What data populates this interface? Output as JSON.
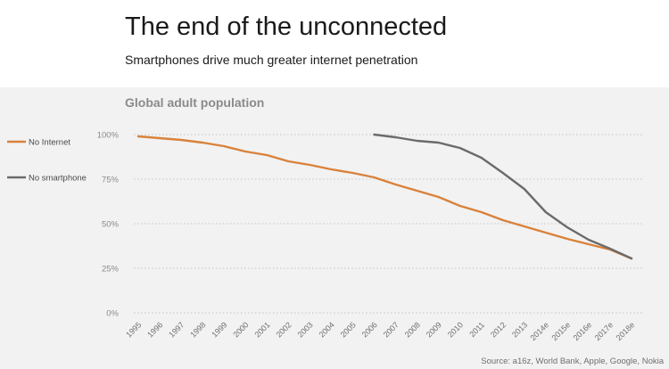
{
  "header": {
    "title": "The end of the unconnected",
    "subtitle": "Smartphones drive much greater internet penetration"
  },
  "chart_data": {
    "type": "line",
    "title": "Global adult population",
    "source": "Source: a16z, World Bank, Apple, Google, Nokia",
    "x": [
      "1995",
      "1996",
      "1997",
      "1998",
      "1999",
      "2000",
      "2001",
      "2002",
      "2003",
      "2004",
      "2005",
      "2006",
      "2007",
      "2008",
      "2009",
      "2010",
      "2011",
      "2012",
      "2013",
      "2014e",
      "2015e",
      "2016e",
      "2017e",
      "2018e"
    ],
    "y_ticks": [
      "100%",
      "75%",
      "50%",
      "25%",
      "0%"
    ],
    "y_tick_values": [
      100,
      75,
      50,
      25,
      0
    ],
    "ylim": [
      0,
      100
    ],
    "grid": true,
    "legend_position": "left",
    "series": [
      {
        "name": "No Internet",
        "color": "#d9823b",
        "values": [
          99,
          98,
          97,
          95.5,
          93.5,
          90.5,
          88.5,
          85,
          83,
          80.5,
          78.5,
          76,
          72,
          68.5,
          65,
          60,
          56.5,
          52,
          48.5,
          45,
          41.5,
          38.5,
          35.5,
          30.5
        ]
      },
      {
        "name": "No smartphone",
        "color": "#6b6b6b",
        "values": [
          null,
          null,
          null,
          null,
          null,
          null,
          null,
          null,
          null,
          null,
          null,
          100,
          98.5,
          96.5,
          95.5,
          92.5,
          87,
          78.5,
          69.5,
          56.5,
          48,
          41,
          36,
          30.5
        ]
      }
    ]
  }
}
